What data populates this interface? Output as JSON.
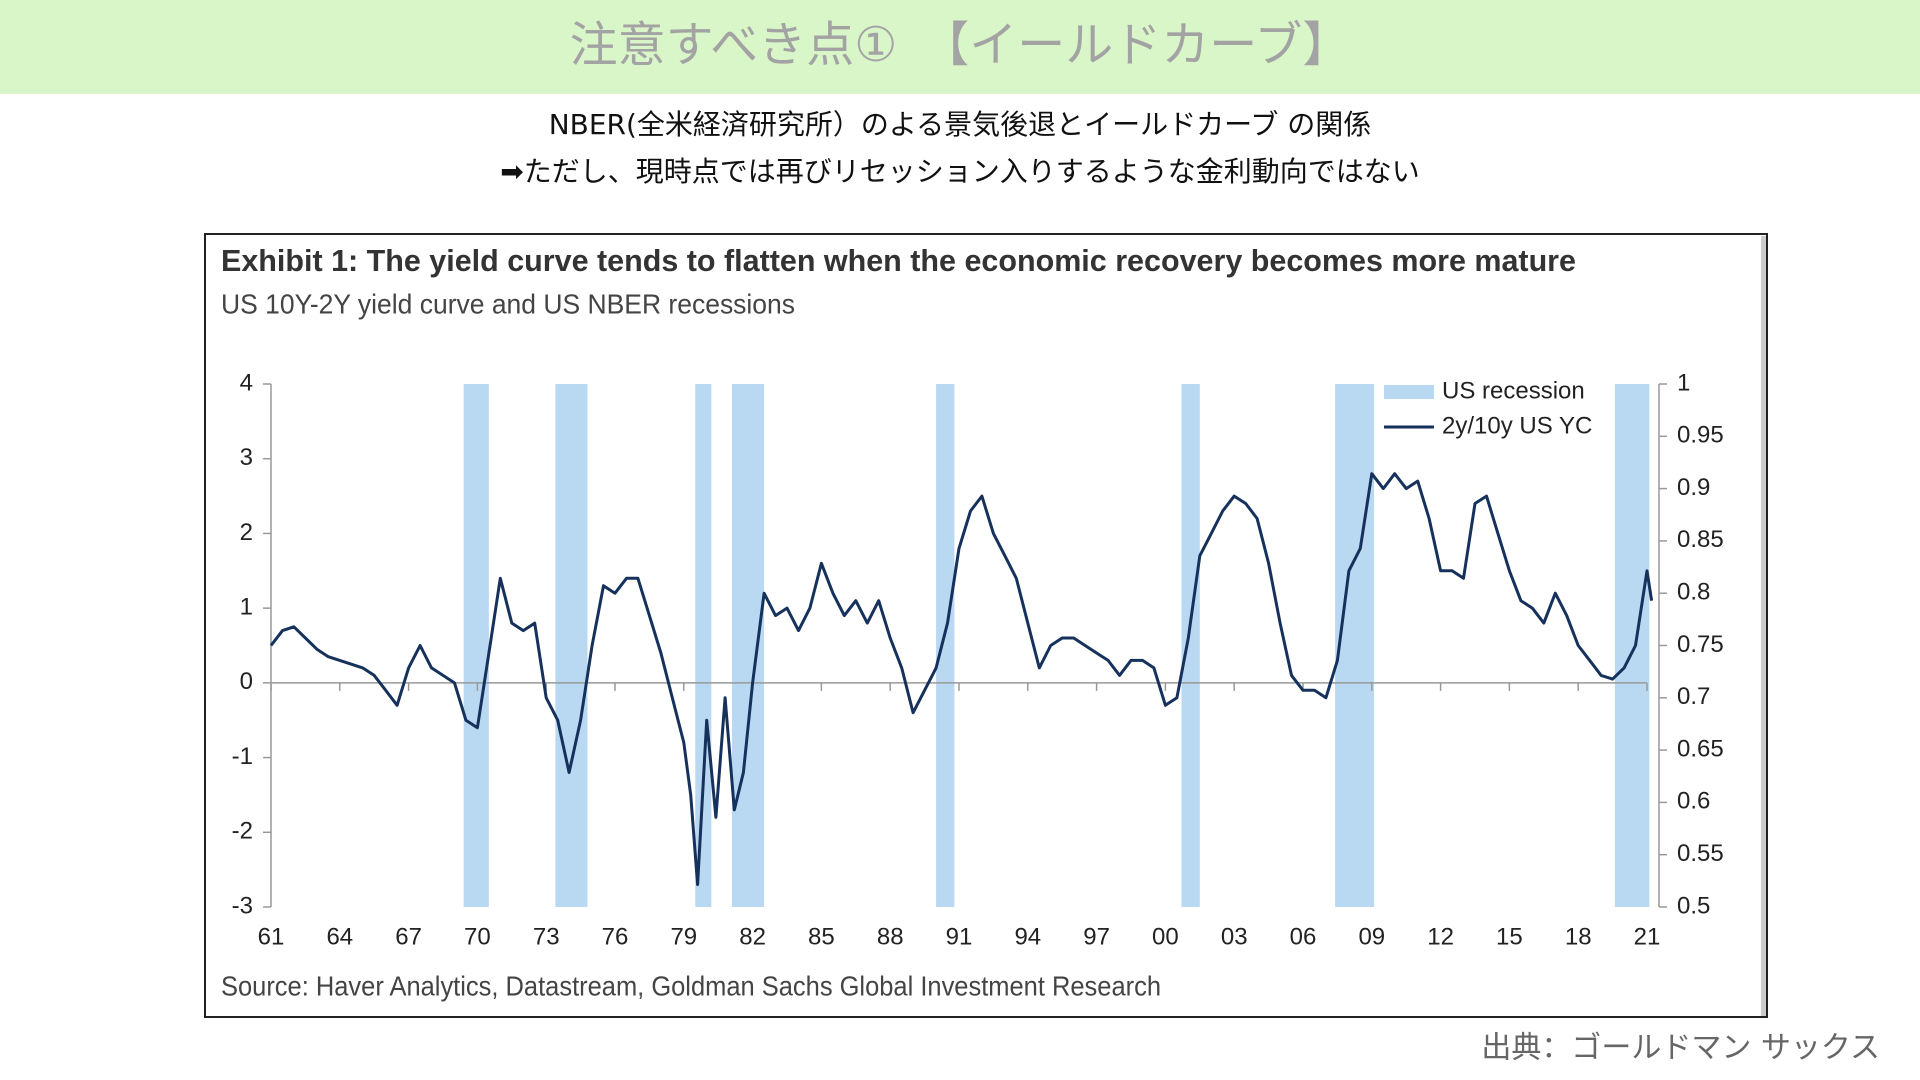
{
  "header": {
    "title": "注意すべき点①　【イールドカーブ】"
  },
  "subtitle": [
    "NBER(全米経済研究所）のよる景気後退とイールドカーブ の関係",
    "➡ただし、現時点では再びリセッション入りするような金利動向ではない"
  ],
  "credit": "出典：ゴールドマン サックス",
  "chart_data": {
    "type": "line",
    "title": "Exhibit 1: The yield curve tends to flatten when the economic recovery becomes more mature",
    "subtitle": "US 10Y-2Y yield curve and US NBER recessions",
    "source": "Source: Haver Analytics, Datastream, Goldman Sachs Global Investment Research",
    "xlim": [
      1961,
      2021
    ],
    "xticks": [
      {
        "value": 1961,
        "label": "61"
      },
      {
        "value": 1964,
        "label": "64"
      },
      {
        "value": 1967,
        "label": "67"
      },
      {
        "value": 1970,
        "label": "70"
      },
      {
        "value": 1973,
        "label": "73"
      },
      {
        "value": 1976,
        "label": "76"
      },
      {
        "value": 1979,
        "label": "79"
      },
      {
        "value": 1982,
        "label": "82"
      },
      {
        "value": 1985,
        "label": "85"
      },
      {
        "value": 1988,
        "label": "88"
      },
      {
        "value": 1991,
        "label": "91"
      },
      {
        "value": 1994,
        "label": "94"
      },
      {
        "value": 1997,
        "label": "97"
      },
      {
        "value": 2000,
        "label": "00"
      },
      {
        "value": 2003,
        "label": "03"
      },
      {
        "value": 2006,
        "label": "06"
      },
      {
        "value": 2009,
        "label": "09"
      },
      {
        "value": 2012,
        "label": "12"
      },
      {
        "value": 2015,
        "label": "15"
      },
      {
        "value": 2018,
        "label": "18"
      },
      {
        "value": 2021,
        "label": "21"
      }
    ],
    "ylim": [
      -3,
      4
    ],
    "yticks": [
      -3,
      -2,
      -1,
      0,
      1,
      2,
      3,
      4
    ],
    "y2lim": [
      0.5,
      1
    ],
    "y2ticks": [
      0.5,
      0.55,
      0.6,
      0.65,
      0.7,
      0.75,
      0.8,
      0.85,
      0.9,
      0.95,
      1
    ],
    "legend": "upper right",
    "series": [
      {
        "name": "US recession",
        "color": "#b9d9f3",
        "axis": "y2",
        "x": [
          [
            1969.4,
            1970.5
          ],
          [
            1973.4,
            1974.8
          ],
          [
            1979.5,
            1980.2
          ],
          [
            1981.1,
            1982.5
          ],
          [
            1990.0,
            1990.8
          ],
          [
            2000.7,
            2001.5
          ],
          [
            2007.4,
            2009.1
          ],
          [
            2019.6,
            2021.1
          ]
        ],
        "values": [
          1,
          1,
          1,
          1,
          1,
          1,
          1,
          1
        ]
      },
      {
        "name": "2y/10y US YC",
        "color": "#16325c",
        "x": [
          1961,
          1961.5,
          1962,
          1962.5,
          1963,
          1963.5,
          1964,
          1964.5,
          1965,
          1965.5,
          1966,
          1966.5,
          1967,
          1967.5,
          1968,
          1968.5,
          1969,
          1969.5,
          1970,
          1970.5,
          1971,
          1971.5,
          1972,
          1972.5,
          1973,
          1973.5,
          1974,
          1974.5,
          1975,
          1975.5,
          1976,
          1976.5,
          1977,
          1977.5,
          1978,
          1978.5,
          1979,
          1979.3,
          1979.6,
          1980,
          1980.4,
          1980.8,
          1981.2,
          1981.6,
          1982,
          1982.5,
          1983,
          1983.5,
          1984,
          1984.5,
          1985,
          1985.5,
          1986,
          1986.5,
          1987,
          1987.5,
          1988,
          1988.5,
          1989,
          1989.5,
          1990,
          1990.5,
          1991,
          1991.5,
          1992,
          1992.5,
          1993,
          1993.5,
          1994,
          1994.5,
          1995,
          1995.5,
          1996,
          1996.5,
          1997,
          1997.5,
          1998,
          1998.5,
          1999,
          1999.5,
          2000,
          2000.5,
          2001,
          2001.5,
          2002,
          2002.5,
          2003,
          2003.5,
          2004,
          2004.5,
          2005,
          2005.5,
          2006,
          2006.5,
          2007,
          2007.5,
          2008,
          2008.5,
          2009,
          2009.5,
          2010,
          2010.5,
          2011,
          2011.5,
          2012,
          2012.5,
          2013,
          2013.5,
          2014,
          2014.5,
          2015,
          2015.5,
          2016,
          2016.5,
          2017,
          2017.5,
          2018,
          2018.5,
          2019,
          2019.5,
          2020,
          2020.5,
          2021,
          2021.2
        ],
        "values": [
          0.5,
          0.7,
          0.75,
          0.6,
          0.45,
          0.35,
          0.3,
          0.25,
          0.2,
          0.1,
          -0.1,
          -0.3,
          0.2,
          0.5,
          0.2,
          0.1,
          0.0,
          -0.5,
          -0.6,
          0.4,
          1.4,
          0.8,
          0.7,
          0.8,
          -0.2,
          -0.5,
          -1.2,
          -0.5,
          0.5,
          1.3,
          1.2,
          1.4,
          1.4,
          0.9,
          0.4,
          -0.2,
          -0.8,
          -1.5,
          -2.7,
          -0.5,
          -1.8,
          -0.2,
          -1.7,
          -1.2,
          0.0,
          1.2,
          0.9,
          1.0,
          0.7,
          1.0,
          1.6,
          1.2,
          0.9,
          1.1,
          0.8,
          1.1,
          0.6,
          0.2,
          -0.4,
          -0.1,
          0.2,
          0.8,
          1.8,
          2.3,
          2.5,
          2.0,
          1.7,
          1.4,
          0.8,
          0.2,
          0.5,
          0.6,
          0.6,
          0.5,
          0.4,
          0.3,
          0.1,
          0.3,
          0.3,
          0.2,
          -0.3,
          -0.2,
          0.6,
          1.7,
          2.0,
          2.3,
          2.5,
          2.4,
          2.2,
          1.6,
          0.8,
          0.1,
          -0.1,
          -0.1,
          -0.2,
          0.3,
          1.5,
          1.8,
          2.8,
          2.6,
          2.8,
          2.6,
          2.7,
          2.2,
          1.5,
          1.5,
          1.4,
          2.4,
          2.5,
          2.0,
          1.5,
          1.1,
          1.0,
          0.8,
          1.2,
          0.9,
          0.5,
          0.3,
          0.1,
          0.05,
          0.2,
          0.5,
          1.5,
          1.1
        ]
      }
    ]
  }
}
